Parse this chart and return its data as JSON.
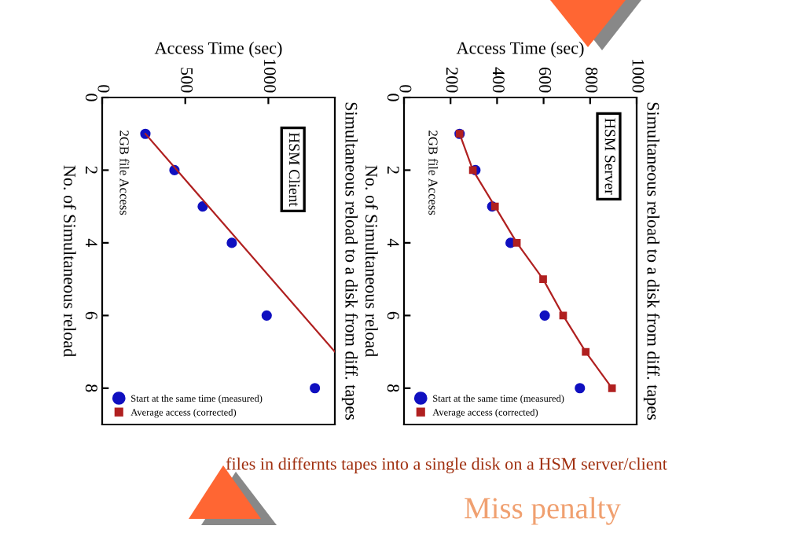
{
  "chart_data": [
    {
      "type": "scatter",
      "title": "Simultaneous reload to a disk from diff. tapes",
      "xlabel": "Access Time (sec)",
      "ylabel": "No. of Simultaneous reload",
      "annotations": [
        "HSM Client",
        "2GB file Access",
        "files in differnts tapes into a single disk on a HSM server/client",
        "Miss penalty"
      ],
      "xlim": [
        0,
        1400
      ],
      "xticks": [
        0,
        500,
        1000
      ],
      "ylim": [
        9,
        0
      ],
      "yticks": [
        0,
        2,
        4,
        6,
        8
      ],
      "legend": "bottom left",
      "grid": false,
      "series": [
        {
          "name": "Start at the same time (measured)",
          "color": "#1010c0",
          "marker": "circle",
          "x": [
            260,
            435,
            605,
            780,
            990,
            1280
          ],
          "values": [
            1,
            2,
            3,
            4,
            6,
            8
          ]
        },
        {
          "name": "Average access (corrected)",
          "color": "#b02020",
          "type": "line",
          "marker": "none",
          "x": [
            260,
            1400
          ],
          "values": [
            1,
            7
          ]
        }
      ]
    },
    {
      "type": "scatter",
      "title": "Simultaneous reload to a disk from diff. tapes",
      "xlabel": "Access Time (sec)",
      "ylabel": "No. of Simultaneous reload",
      "annotations": [
        "HSM Server",
        "2GB file Access"
      ],
      "xlim": [
        0,
        1000
      ],
      "xticks": [
        0,
        200,
        400,
        600,
        800,
        1000
      ],
      "ylim": [
        9,
        0
      ],
      "yticks": [
        0,
        2,
        4,
        6,
        8
      ],
      "legend": "bottom left",
      "grid": false,
      "series": [
        {
          "name": "Start at the same time (measured)",
          "color": "#1010c0",
          "marker": "circle",
          "x": [
            239,
            307,
            379,
            458,
            605,
            756
          ],
          "values": [
            1,
            2,
            3,
            4,
            6,
            8
          ]
        },
        {
          "name": "Average access (corrected)",
          "color": "#b02020",
          "type": "line",
          "marker": "square",
          "x": [
            239,
            296,
            391,
            485,
            598,
            684,
            781,
            894
          ],
          "values": [
            1,
            2,
            3,
            4,
            5,
            6,
            7,
            8
          ]
        }
      ]
    }
  ]
}
